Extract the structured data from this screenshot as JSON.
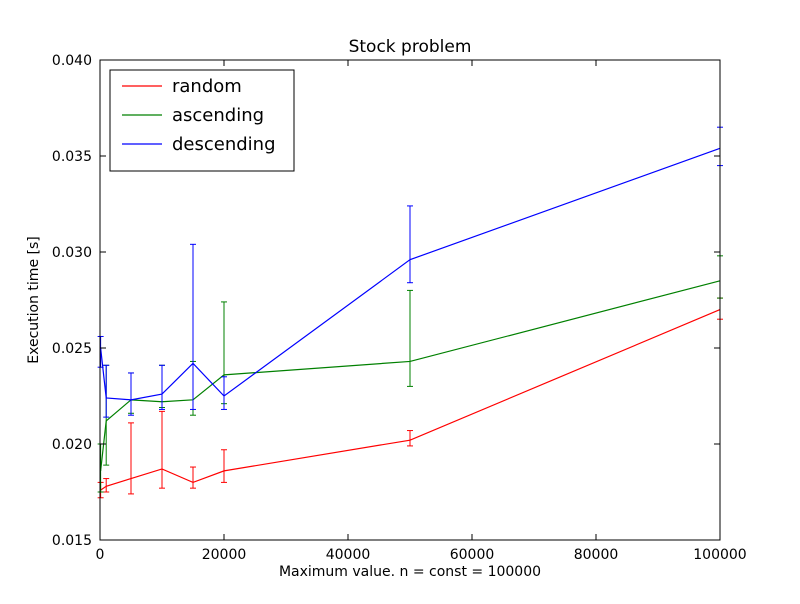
{
  "chart_data": {
    "type": "line",
    "title": "Stock problem",
    "xlabel": "Maximum value. n = const = 100000",
    "ylabel": "Execution time [s]",
    "xlim": [
      0,
      100000
    ],
    "ylim": [
      0.015,
      0.04
    ],
    "x_ticks": [
      0,
      20000,
      40000,
      60000,
      80000,
      100000
    ],
    "x_tick_labels": [
      "0",
      "20000",
      "40000",
      "60000",
      "80000",
      "100000"
    ],
    "y_ticks": [
      0.015,
      0.02,
      0.025,
      0.03,
      0.035,
      0.04
    ],
    "y_tick_labels": [
      "0.015",
      "0.020",
      "0.025",
      "0.030",
      "0.035",
      "0.040"
    ],
    "grid": false,
    "legend_position": "top-left",
    "series": [
      {
        "name": "random",
        "color": "#ff0000",
        "x": [
          100,
          1000,
          5000,
          10000,
          15000,
          20000,
          50000,
          100000
        ],
        "y": [
          0.0176,
          0.0178,
          0.0182,
          0.0187,
          0.018,
          0.0186,
          0.0202,
          0.027
        ],
        "yerr_low": [
          0.0172,
          0.0175,
          0.0174,
          0.0177,
          0.0177,
          0.018,
          0.0199,
          0.0265
        ],
        "yerr_high": [
          0.018,
          0.0182,
          0.0211,
          0.0217,
          0.0188,
          0.0197,
          0.0207,
          0.0276
        ]
      },
      {
        "name": "ascending",
        "color": "#008000",
        "x": [
          100,
          1000,
          5000,
          10000,
          15000,
          20000,
          50000,
          100000
        ],
        "y": [
          0.0186,
          0.0212,
          0.0223,
          0.0222,
          0.0223,
          0.0236,
          0.0243,
          0.0285
        ],
        "yerr_low": [
          0.0175,
          0.0189,
          0.0216,
          0.0219,
          0.0215,
          0.0221,
          0.023,
          0.0276
        ],
        "yerr_high": [
          0.02,
          0.0241,
          0.0237,
          0.0241,
          0.0243,
          0.0274,
          0.028,
          0.0298
        ]
      },
      {
        "name": "descending",
        "color": "#0000ff",
        "x": [
          100,
          1000,
          5000,
          10000,
          15000,
          20000,
          50000,
          100000
        ],
        "y": [
          0.025,
          0.0224,
          0.0223,
          0.0226,
          0.0242,
          0.0225,
          0.0296,
          0.0354
        ],
        "yerr_low": [
          0.024,
          0.0214,
          0.0215,
          0.0218,
          0.0218,
          0.0218,
          0.0284,
          0.0345
        ],
        "yerr_high": [
          0.0256,
          0.0241,
          0.0237,
          0.0241,
          0.0304,
          0.0235,
          0.0324,
          0.0365
        ]
      }
    ]
  }
}
